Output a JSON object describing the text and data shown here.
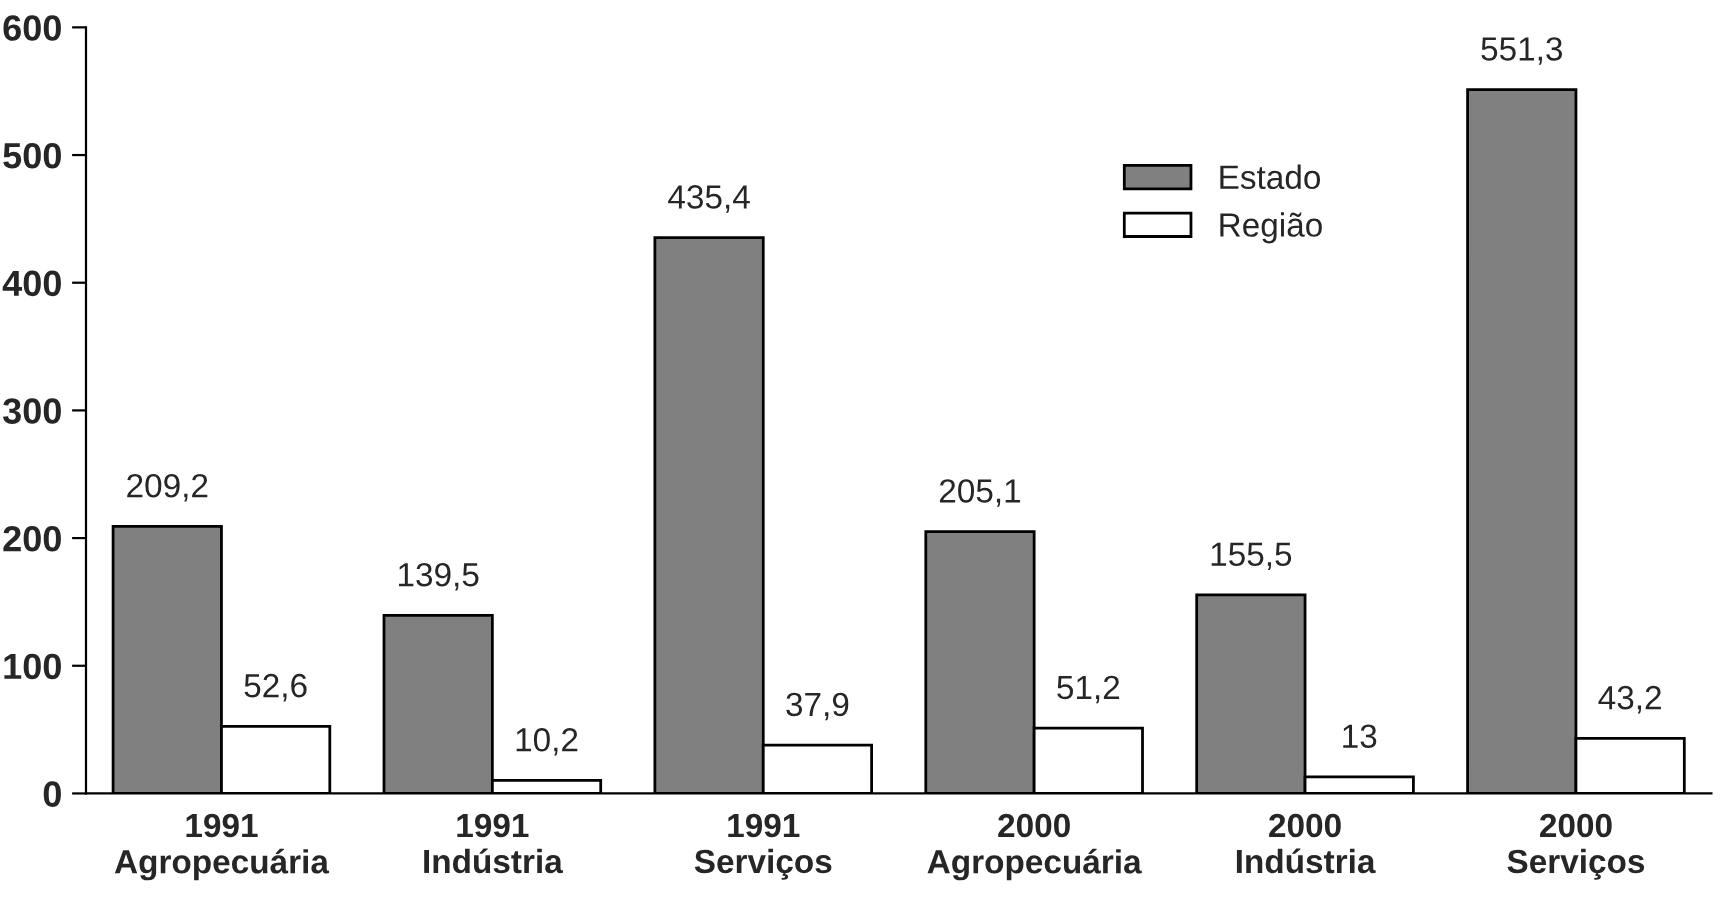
{
  "chart_data": {
    "type": "bar",
    "categories": [
      "1991\nAgropecuária",
      "1991\nIndústria",
      "1991\nServiços",
      "2000\nAgropecuária",
      "2000\nIndústria",
      "2000\nServiços"
    ],
    "series": [
      {
        "name": "Estado",
        "color": "#808080",
        "values": [
          209.2,
          139.5,
          435.4,
          205.1,
          155.5,
          551.3
        ],
        "value_labels": [
          "209,2",
          "139,5",
          "435,4",
          "205,1",
          "155,5",
          "551,3"
        ]
      },
      {
        "name": "Região",
        "color": "#ffffff",
        "values": [
          52.6,
          10.2,
          37.9,
          51.2,
          13,
          43.2
        ],
        "value_labels": [
          "52,6",
          "10,2",
          "37,9",
          "51,2",
          "13",
          "43,2"
        ]
      }
    ],
    "ylim": [
      0,
      600
    ],
    "yticks": [
      0,
      100,
      200,
      300,
      400,
      500,
      600
    ],
    "grid": false,
    "legend": "top"
  }
}
